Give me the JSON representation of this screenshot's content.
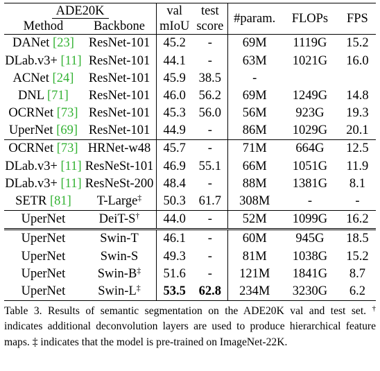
{
  "header": {
    "dataset": "ADE20K",
    "method": "Method",
    "backbone": "Backbone",
    "val_top": "val",
    "val_bottom": "mIoU",
    "test_top": "test",
    "test_bottom": "score",
    "params": "#param.",
    "flops": "FLOPs",
    "fps": "FPS"
  },
  "rows": [
    {
      "method": "DANet",
      "ref": "[23]",
      "backbone": "ResNet-101",
      "mark": "",
      "val": "45.2",
      "test": "-",
      "params": "69M",
      "flops": "1119G",
      "fps": "15.2"
    },
    {
      "method": "DLab.v3+",
      "ref": "[11]",
      "backbone": "ResNet-101",
      "mark": "",
      "val": "44.1",
      "test": "-",
      "params": "63M",
      "flops": "1021G",
      "fps": "16.0"
    },
    {
      "method": "ACNet",
      "ref": "[24]",
      "backbone": "ResNet-101",
      "mark": "",
      "val": "45.9",
      "test": "38.5",
      "params": "-",
      "flops": "",
      "fps": ""
    },
    {
      "method": "DNL",
      "ref": "[71]",
      "backbone": "ResNet-101",
      "mark": "",
      "val": "46.0",
      "test": "56.2",
      "params": "69M",
      "flops": "1249G",
      "fps": "14.8"
    },
    {
      "method": "OCRNet",
      "ref": "[73]",
      "backbone": "ResNet-101",
      "mark": "",
      "val": "45.3",
      "test": "56.0",
      "params": "56M",
      "flops": "923G",
      "fps": "19.3"
    },
    {
      "method": "UperNet",
      "ref": "[69]",
      "backbone": "ResNet-101",
      "mark": "",
      "val": "44.9",
      "test": "-",
      "params": "86M",
      "flops": "1029G",
      "fps": "20.1"
    },
    {
      "method": "OCRNet",
      "ref": "[73]",
      "backbone": "HRNet-w48",
      "mark": "",
      "val": "45.7",
      "test": "-",
      "params": "71M",
      "flops": "664G",
      "fps": "12.5"
    },
    {
      "method": "DLab.v3+",
      "ref": "[11]",
      "backbone": "ResNeSt-101",
      "mark": "",
      "val": "46.9",
      "test": "55.1",
      "params": "66M",
      "flops": "1051G",
      "fps": "11.9"
    },
    {
      "method": "DLab.v3+",
      "ref": "[11]",
      "backbone": "ResNeSt-200",
      "mark": "",
      "val": "48.4",
      "test": "-",
      "params": "88M",
      "flops": "1381G",
      "fps": "8.1"
    },
    {
      "method": "SETR",
      "ref": "[81]",
      "backbone": "T-Large",
      "mark": "‡",
      "val": "50.3",
      "test": "61.7",
      "params": "308M",
      "flops": "-",
      "fps": "-"
    },
    {
      "method": "UperNet",
      "ref": "",
      "backbone": "DeiT-S",
      "mark": "†",
      "val": "44.0",
      "test": "-",
      "params": "52M",
      "flops": "1099G",
      "fps": "16.2"
    },
    {
      "method": "UperNet",
      "ref": "",
      "backbone": "Swin-T",
      "mark": "",
      "val": "46.1",
      "test": "-",
      "params": "60M",
      "flops": "945G",
      "fps": "18.5"
    },
    {
      "method": "UperNet",
      "ref": "",
      "backbone": "Swin-S",
      "mark": "",
      "val": "49.3",
      "test": "-",
      "params": "81M",
      "flops": "1038G",
      "fps": "15.2"
    },
    {
      "method": "UperNet",
      "ref": "",
      "backbone": "Swin-B",
      "mark": "‡",
      "val": "51.6",
      "test": "-",
      "params": "121M",
      "flops": "1841G",
      "fps": "8.7"
    },
    {
      "method": "UperNet",
      "ref": "",
      "backbone": "Swin-L",
      "mark": "‡",
      "val": "53.5",
      "test": "62.8",
      "params": "234M",
      "flops": "3230G",
      "fps": "6.2"
    }
  ],
  "caption": {
    "part1": "Table 3. Results of semantic segmentation on the ADE20K val and test set. ",
    "dagger": "†",
    "part2": " indicates additional deconvolution layers are used to produce hierarchical feature maps. ",
    "ddagger": "‡",
    "part3": " indicates that the model is pre-trained on ImageNet-22K."
  }
}
